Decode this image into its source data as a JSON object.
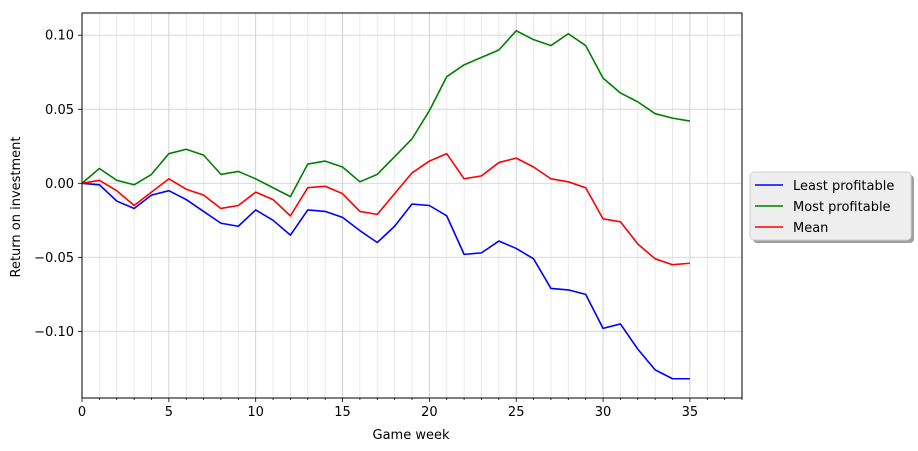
{
  "chart_data": {
    "type": "line",
    "title": "",
    "xlabel": "Game week",
    "ylabel": "Return on investment",
    "xlim": [
      0,
      38
    ],
    "ylim": [
      -0.145,
      0.115
    ],
    "xticks_major": [
      0,
      5,
      10,
      15,
      20,
      25,
      30,
      35
    ],
    "xtick_labels": [
      "0",
      "5",
      "10",
      "15",
      "20",
      "25",
      "30",
      "35"
    ],
    "yticks_major": [
      -0.1,
      -0.05,
      0.0,
      0.05,
      0.1
    ],
    "ytick_labels": [
      "−0.10",
      "−0.05",
      "0.00",
      "0.05",
      "0.10"
    ],
    "grid": true,
    "minor_grid_x": true,
    "legend_position": "outside-right",
    "x": [
      0,
      1,
      2,
      3,
      4,
      5,
      6,
      7,
      8,
      9,
      10,
      11,
      12,
      13,
      14,
      15,
      16,
      17,
      18,
      19,
      20,
      21,
      22,
      23,
      24,
      25,
      26,
      27,
      28,
      29,
      30,
      31,
      32,
      33,
      34,
      35
    ],
    "series": [
      {
        "name": "Least profitable",
        "color": "#0000ff",
        "values": [
          0.0,
          -0.001,
          -0.012,
          -0.017,
          -0.008,
          -0.005,
          -0.011,
          -0.019,
          -0.027,
          -0.029,
          -0.018,
          -0.025,
          -0.035,
          -0.018,
          -0.019,
          -0.023,
          -0.032,
          -0.04,
          -0.029,
          -0.014,
          -0.015,
          -0.022,
          -0.048,
          -0.047,
          -0.039,
          -0.044,
          -0.051,
          -0.071,
          -0.072,
          -0.075,
          -0.098,
          -0.095,
          -0.112,
          -0.126,
          -0.132,
          -0.132
        ]
      },
      {
        "name": "Most profitable",
        "color": "#008000",
        "values": [
          0.0,
          0.01,
          0.002,
          -0.001,
          0.006,
          0.02,
          0.023,
          0.019,
          0.006,
          0.008,
          0.003,
          -0.003,
          -0.009,
          0.013,
          0.015,
          0.011,
          0.001,
          0.006,
          0.018,
          0.03,
          0.049,
          0.072,
          0.08,
          0.085,
          0.09,
          0.103,
          0.097,
          0.093,
          0.101,
          0.093,
          0.071,
          0.061,
          0.055,
          0.047,
          0.044,
          0.042
        ]
      },
      {
        "name": "Mean",
        "color": "#ff0000",
        "values": [
          0.0,
          0.002,
          -0.005,
          -0.015,
          -0.006,
          0.003,
          -0.004,
          -0.008,
          -0.017,
          -0.015,
          -0.006,
          -0.011,
          -0.022,
          -0.003,
          -0.002,
          -0.007,
          -0.019,
          -0.021,
          -0.007,
          0.007,
          0.015,
          0.02,
          0.003,
          0.005,
          0.014,
          0.017,
          0.011,
          0.003,
          0.001,
          -0.003,
          -0.024,
          -0.026,
          -0.041,
          -0.051,
          -0.055,
          -0.054
        ]
      }
    ]
  }
}
